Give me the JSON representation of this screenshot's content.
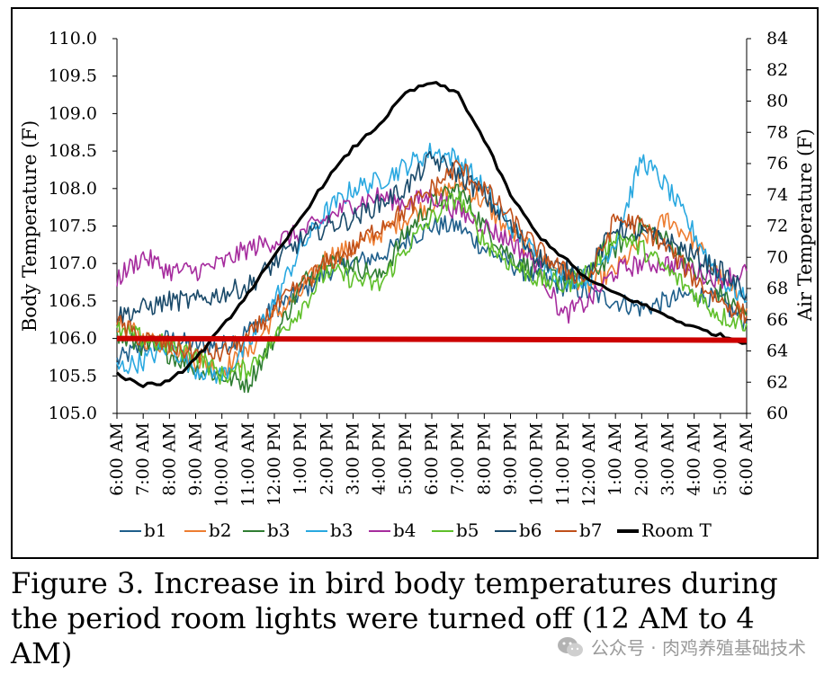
{
  "chart_data": {
    "type": "line",
    "title": "",
    "ylabel": "Body Temperature (F)",
    "y2label": "Air Temperature (F)",
    "ylim": [
      105.0,
      110.0
    ],
    "y2lim": [
      60,
      84
    ],
    "yticks": [
      "105.0",
      "105.5",
      "106.0",
      "106.5",
      "107.0",
      "107.5",
      "108.0",
      "108.5",
      "109.0",
      "109.5",
      "110.0"
    ],
    "y2ticks": [
      "60",
      "62",
      "64",
      "66",
      "68",
      "70",
      "72",
      "74",
      "76",
      "78",
      "80",
      "82",
      "84"
    ],
    "categories": [
      "6:00 AM",
      "7:00 AM",
      "8:00 AM",
      "9:00 AM",
      "10:00 AM",
      "11:00 AM",
      "12:00 PM",
      "1:00 PM",
      "2:00 PM",
      "3:00 PM",
      "4:00 PM",
      "5:00 PM",
      "6:00 PM",
      "7:00 PM",
      "8:00 PM",
      "9:00 PM",
      "10:00 PM",
      "11:00 PM",
      "12:00 AM",
      "1:00 AM",
      "2:00 AM",
      "3:00 AM",
      "4:00 AM",
      "5:00 AM",
      "6:00 AM"
    ],
    "legend_position": "bottom",
    "grid": false,
    "reference_line": {
      "value": 106.0,
      "color": "#cc0000"
    },
    "series": [
      {
        "name": "b1",
        "color": "#1f5f8b",
        "axis": "left",
        "values": [
          105.7,
          105.9,
          106.0,
          105.9,
          105.9,
          106.1,
          106.4,
          106.6,
          106.9,
          107.0,
          107.1,
          107.3,
          107.5,
          107.5,
          107.2,
          107.0,
          106.8,
          106.7,
          106.6,
          106.5,
          106.4,
          106.5,
          106.6,
          106.5,
          106.2
        ]
      },
      {
        "name": "b2",
        "color": "#ed7d31",
        "axis": "left",
        "values": [
          106.2,
          106.0,
          105.9,
          105.7,
          105.6,
          105.8,
          106.3,
          106.6,
          107.1,
          107.2,
          107.4,
          107.6,
          107.8,
          108.1,
          107.8,
          107.4,
          107.1,
          106.9,
          106.7,
          106.9,
          107.3,
          107.6,
          107.3,
          106.8,
          106.4
        ]
      },
      {
        "name": "b3",
        "color": "#2f7d32",
        "axis": "left",
        "values": [
          106.0,
          105.9,
          105.8,
          105.6,
          105.5,
          105.4,
          106.0,
          106.7,
          107.1,
          107.0,
          106.8,
          107.4,
          107.8,
          108.0,
          107.5,
          107.1,
          106.9,
          106.8,
          106.8,
          107.2,
          107.5,
          107.3,
          106.9,
          106.6,
          106.3
        ]
      },
      {
        "name": "b3",
        "color": "#29a8e0",
        "axis": "left",
        "values": [
          105.6,
          105.7,
          105.9,
          105.6,
          105.5,
          105.9,
          106.5,
          107.2,
          107.7,
          108.0,
          108.1,
          108.3,
          108.5,
          108.4,
          108.0,
          107.5,
          107.1,
          106.8,
          106.8,
          107.3,
          108.4,
          108.0,
          107.4,
          106.8,
          106.5
        ]
      },
      {
        "name": "b4",
        "color": "#a62c9e",
        "axis": "left",
        "values": [
          106.8,
          107.1,
          106.9,
          106.9,
          107.0,
          107.2,
          107.3,
          107.4,
          107.6,
          107.8,
          107.9,
          107.8,
          107.9,
          107.7,
          107.5,
          107.3,
          107.0,
          106.3,
          106.5,
          106.9,
          107.0,
          107.0,
          106.9,
          106.8,
          106.9
        ]
      },
      {
        "name": "b5",
        "color": "#5fbf2a",
        "axis": "left",
        "values": [
          106.1,
          106.0,
          105.9,
          105.8,
          105.5,
          105.6,
          106.0,
          106.4,
          106.9,
          106.8,
          106.7,
          107.2,
          107.6,
          107.9,
          107.3,
          107.0,
          106.8,
          106.7,
          106.9,
          107.4,
          107.2,
          106.9,
          106.6,
          106.3,
          106.2
        ]
      },
      {
        "name": "b6",
        "color": "#1a4a6a",
        "axis": "left",
        "values": [
          106.3,
          106.4,
          106.5,
          106.5,
          106.6,
          106.7,
          107.0,
          107.3,
          107.5,
          107.6,
          107.8,
          108.0,
          108.4,
          108.2,
          107.9,
          107.5,
          107.1,
          106.9,
          106.9,
          107.5,
          107.4,
          107.3,
          107.1,
          106.9,
          106.6
        ]
      },
      {
        "name": "b7",
        "color": "#c0501a",
        "axis": "left",
        "values": [
          106.2,
          106.0,
          105.9,
          105.8,
          105.8,
          106.0,
          106.4,
          106.7,
          107.0,
          107.2,
          107.5,
          107.7,
          108.0,
          108.3,
          108.0,
          107.6,
          107.2,
          106.9,
          106.8,
          107.6,
          107.5,
          107.2,
          106.8,
          106.5,
          106.3
        ]
      },
      {
        "name": "Room T",
        "color": "#000000",
        "axis": "right",
        "values": [
          62.5,
          61.8,
          62.0,
          63.5,
          65.5,
          67.7,
          70.0,
          72.5,
          75.0,
          77.0,
          78.5,
          80.5,
          81.2,
          80.5,
          77.5,
          74.0,
          71.5,
          70.0,
          68.5,
          67.7,
          67.0,
          66.2,
          65.5,
          65.0,
          64.5
        ]
      }
    ]
  },
  "caption": "Figure 3.  Increase in bird body temperatures during the period room lights were turned off (12 AM to 4 AM)",
  "watermark": {
    "text": "公众号 · 肉鸡养殖基础技术",
    "icon": "wechat-icon"
  }
}
